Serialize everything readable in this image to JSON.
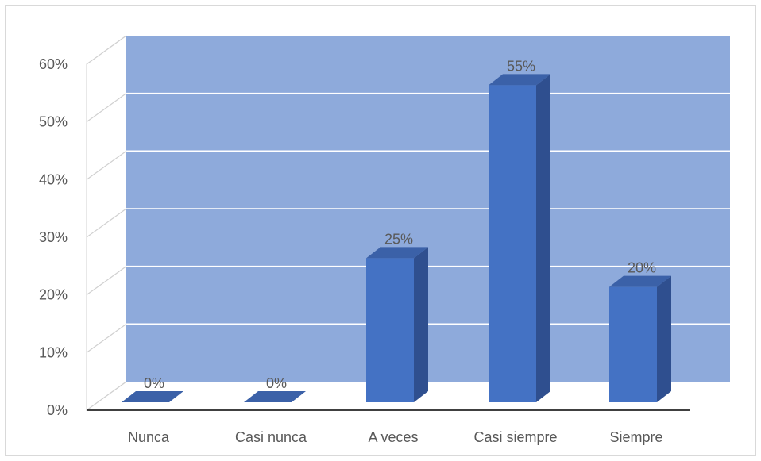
{
  "chart_data": {
    "type": "bar",
    "style": "3d-column",
    "title": "",
    "xlabel": "",
    "ylabel": "",
    "categories": [
      "Nunca",
      "Casi nunca",
      "A veces",
      "Casi siempre",
      "Siempre"
    ],
    "values": [
      0,
      0,
      25,
      55,
      20
    ],
    "data_labels": [
      "0%",
      "0%",
      "25%",
      "55%",
      "20%"
    ],
    "ylim": [
      0,
      60
    ],
    "yticks": [
      0,
      10,
      20,
      30,
      40,
      50,
      60
    ],
    "ytick_labels": [
      "0%",
      "10%",
      "20%",
      "30%",
      "40%",
      "50%",
      "60%"
    ],
    "grid": true,
    "legend": "none",
    "colors": {
      "bar_front": "#4472c4",
      "bar_side": "#2f4f8f",
      "bar_top": "#3b61a8",
      "back_wall": "#8eaadb",
      "side_wall": "#ffffff",
      "gridline": "#ffffff",
      "wall_edge": "#d0d0d0",
      "baseline": "#000000",
      "text": "#595959"
    }
  }
}
